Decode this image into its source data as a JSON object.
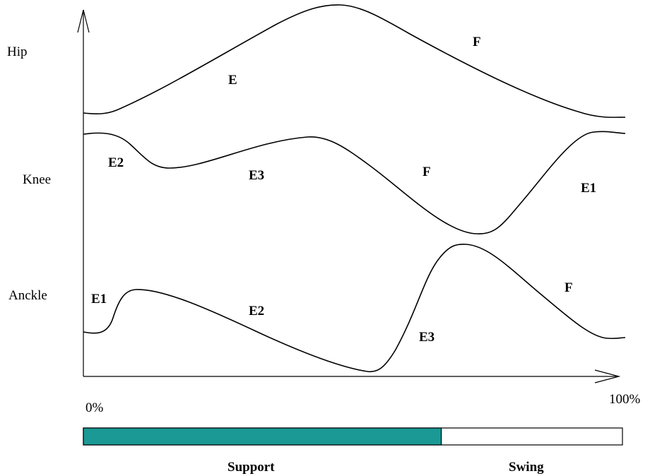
{
  "rows": {
    "hip": "Hip",
    "knee": "Knee",
    "ankle": "Anckle"
  },
  "phases": {
    "hip_e": "E",
    "hip_f": "F",
    "knee_e2": "E2",
    "knee_e3": "E3",
    "knee_f": "F",
    "knee_e1": "E1",
    "ankle_e1": "E1",
    "ankle_e2": "E2",
    "ankle_e3": "E3",
    "ankle_f": "F"
  },
  "axis": {
    "start": "0%",
    "end": "100%"
  },
  "gait_bar": {
    "support_label": "Support",
    "swing_label": "Swing",
    "support_fraction": 0.664,
    "support_color": "#1a9995",
    "swing_color": "#ffffff"
  }
}
